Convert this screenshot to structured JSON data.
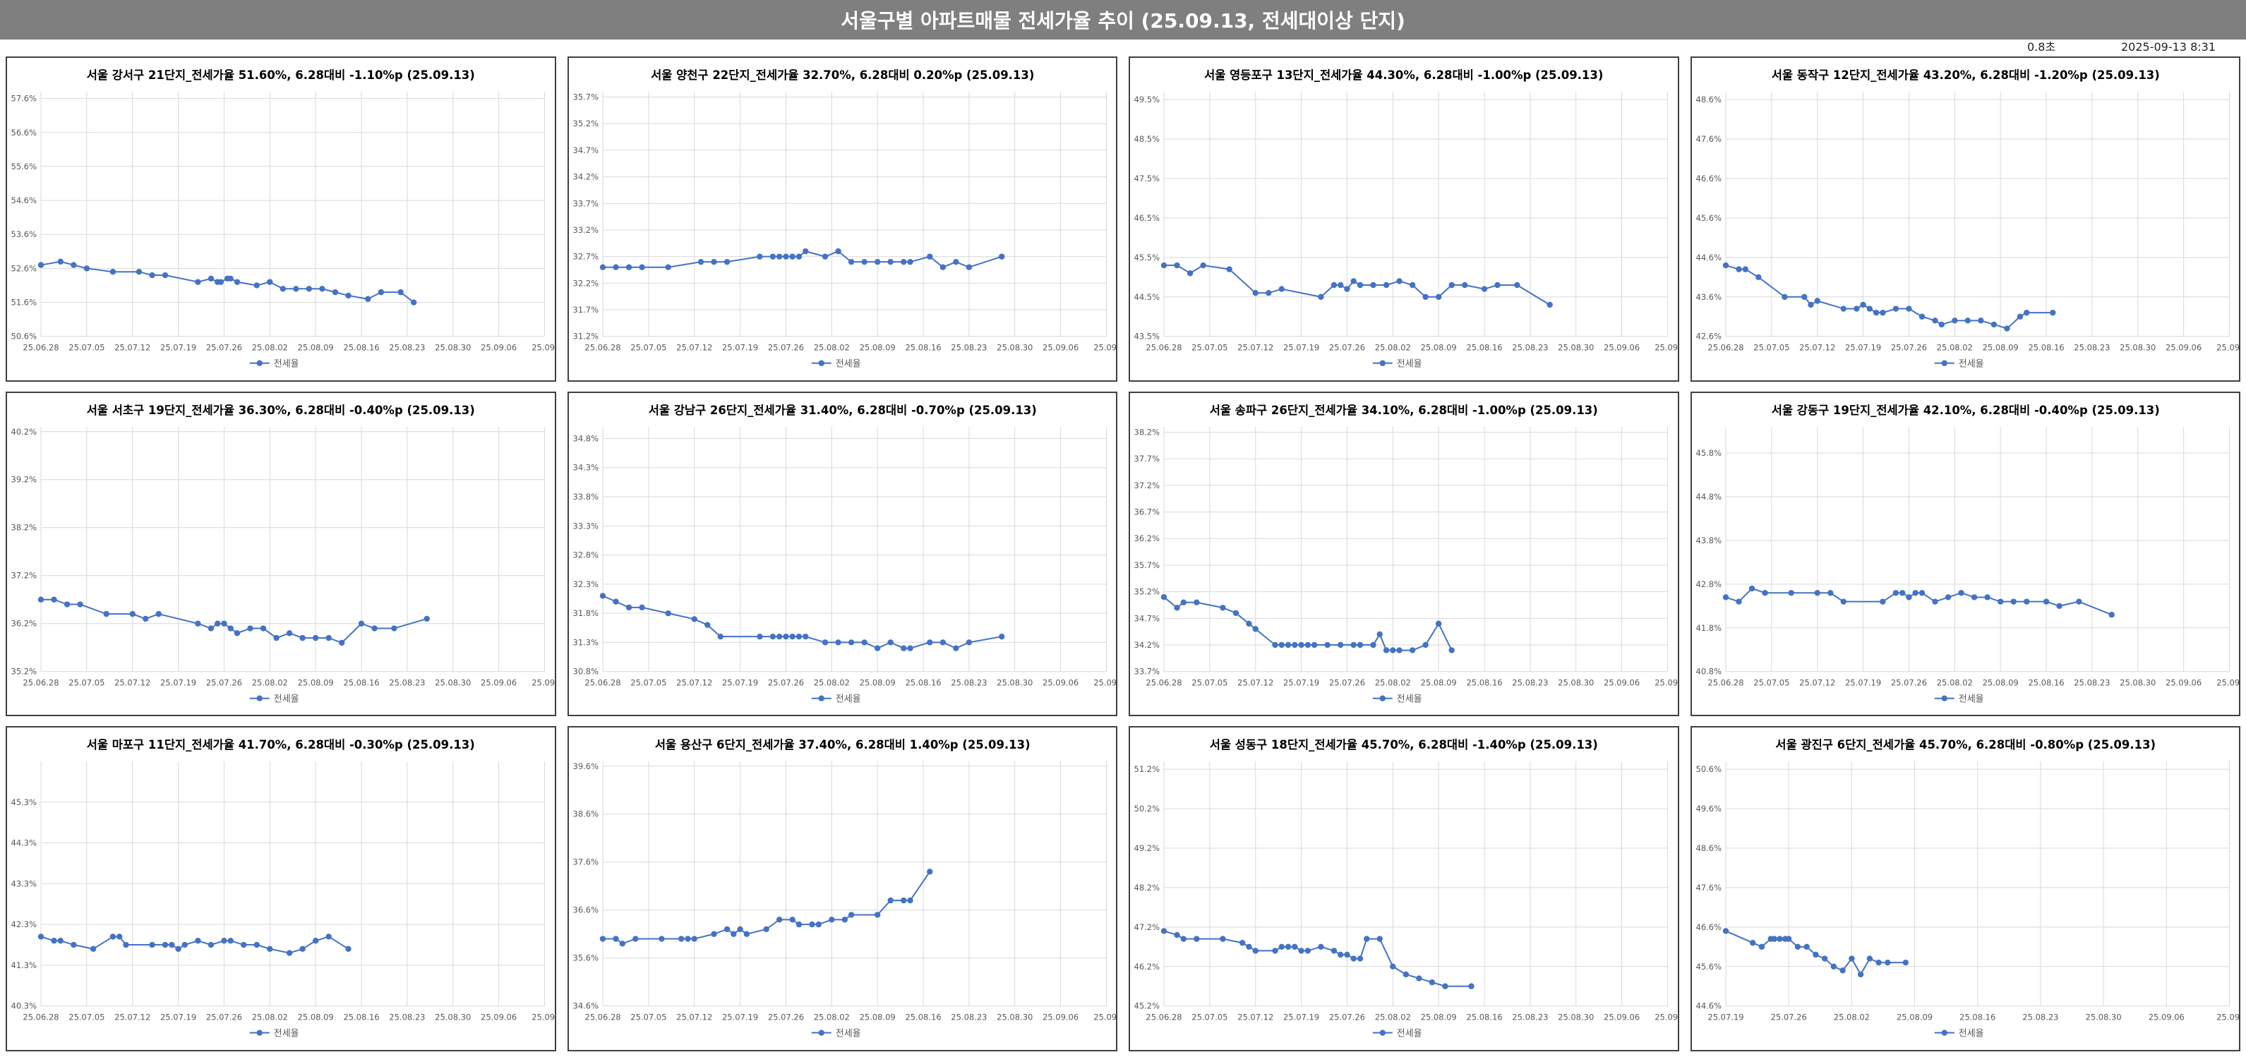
{
  "header": {
    "title": "서울구별 아파트매물 전세가율 추이 (25.09.13, 전세대이상 단지)",
    "elapsed": "0.8초",
    "timestamp": "2025-09-13 8:31"
  },
  "colors": {
    "series": "#4472c4",
    "grid": "#d9d9d9",
    "banner": "#7f7f7f"
  },
  "chart_data": [
    {
      "type": "line",
      "title": "서울 강서구 21단지_전세가율 51.60%, 6.28대비 -1.10%p (25.09.13)",
      "xlabels": [
        "25.06.28",
        "25.07.05",
        "25.07.12",
        "25.07.19",
        "25.07.26",
        "25.08.02",
        "25.08.09",
        "25.08.16",
        "25.08.23",
        "25.08.30",
        "25.09.06",
        "25.09."
      ],
      "yticks": [
        "50.6%",
        "51.6%",
        "52.6%",
        "53.6%",
        "54.6%",
        "55.6%",
        "56.6%",
        "57.6%"
      ],
      "ylim": [
        50.6,
        57.8
      ],
      "x": [
        0,
        3,
        5,
        7,
        11,
        15,
        17,
        19,
        24,
        26,
        27,
        27.5,
        28.5,
        29,
        30,
        33,
        35,
        37,
        39,
        41,
        43,
        45,
        47,
        50,
        52,
        55,
        57
      ],
      "series": [
        {
          "name": "전세율",
          "values": [
            52.7,
            52.8,
            52.7,
            52.6,
            52.5,
            52.5,
            52.4,
            52.4,
            52.2,
            52.3,
            52.2,
            52.2,
            52.3,
            52.3,
            52.2,
            52.1,
            52.2,
            52.0,
            52.0,
            52.0,
            52.0,
            51.9,
            51.8,
            51.7,
            51.9,
            51.9,
            51.6
          ]
        }
      ]
    },
    {
      "type": "line",
      "title": "서울 양천구 22단지_전세가율 32.70%, 6.28대비 0.20%p (25.09.13)",
      "xlabels": [
        "25.06.28",
        "25.07.05",
        "25.07.12",
        "25.07.19",
        "25.07.26",
        "25.08.02",
        "25.08.09",
        "25.08.16",
        "25.08.23",
        "25.08.30",
        "25.09.06",
        "25.09."
      ],
      "yticks": [
        "31.2%",
        "31.7%",
        "32.2%",
        "32.7%",
        "33.2%",
        "33.7%",
        "34.2%",
        "34.7%",
        "35.2%",
        "35.7%"
      ],
      "ylim": [
        31.2,
        35.8
      ],
      "x": [
        0,
        2,
        4,
        6,
        10,
        15,
        17,
        19,
        24,
        26,
        27,
        28,
        29,
        30,
        31,
        34,
        36,
        38,
        40,
        42,
        44,
        46,
        47,
        50,
        52,
        54,
        56,
        61
      ],
      "series": [
        {
          "name": "전세율",
          "values": [
            32.5,
            32.5,
            32.5,
            32.5,
            32.5,
            32.6,
            32.6,
            32.6,
            32.7,
            32.7,
            32.7,
            32.7,
            32.7,
            32.7,
            32.8,
            32.7,
            32.8,
            32.6,
            32.6,
            32.6,
            32.6,
            32.6,
            32.6,
            32.7,
            32.5,
            32.6,
            32.5,
            32.7
          ]
        }
      ]
    },
    {
      "type": "line",
      "title": "서울 영등포구 13단지_전세가율 44.30%, 6.28대비 -1.00%p (25.09.13)",
      "xlabels": [
        "25.06.28",
        "25.07.05",
        "25.07.12",
        "25.07.19",
        "25.07.26",
        "25.08.02",
        "25.08.09",
        "25.08.16",
        "25.08.23",
        "25.08.30",
        "25.09.06",
        "25.09."
      ],
      "yticks": [
        "43.5%",
        "44.5%",
        "45.5%",
        "46.5%",
        "47.5%",
        "48.5%",
        "49.5%"
      ],
      "ylim": [
        43.5,
        49.7
      ],
      "x": [
        0,
        2,
        4,
        6,
        10,
        14,
        16,
        18,
        24,
        26,
        27,
        28,
        29,
        30,
        32,
        34,
        36,
        38,
        40,
        42,
        44,
        46,
        49,
        51,
        54,
        59
      ],
      "series": [
        {
          "name": "전세율",
          "values": [
            45.3,
            45.3,
            45.1,
            45.3,
            45.2,
            44.6,
            44.6,
            44.7,
            44.5,
            44.8,
            44.8,
            44.7,
            44.9,
            44.8,
            44.8,
            44.8,
            44.9,
            44.8,
            44.5,
            44.5,
            44.8,
            44.8,
            44.7,
            44.8,
            44.8,
            44.3
          ]
        }
      ]
    },
    {
      "type": "line",
      "title": "서울 동작구 12단지_전세가율 43.20%, 6.28대비 -1.20%p (25.09.13)",
      "xlabels": [
        "25.06.28",
        "25.07.05",
        "25.07.12",
        "25.07.19",
        "25.07.26",
        "25.08.02",
        "25.08.09",
        "25.08.16",
        "25.08.23",
        "25.08.30",
        "25.09.06",
        "25.09."
      ],
      "yticks": [
        "42.6%",
        "43.6%",
        "44.6%",
        "45.6%",
        "46.6%",
        "47.6%",
        "48.6%"
      ],
      "ylim": [
        42.6,
        48.8
      ],
      "x": [
        0,
        2,
        3,
        5,
        9,
        12,
        13,
        14,
        18,
        20,
        21,
        22,
        23,
        24,
        26,
        28,
        30,
        32,
        33,
        35,
        37,
        39,
        41,
        43,
        45,
        46,
        50
      ],
      "series": [
        {
          "name": "전세율",
          "values": [
            44.4,
            44.3,
            44.3,
            44.1,
            43.6,
            43.6,
            43.4,
            43.5,
            43.3,
            43.3,
            43.4,
            43.3,
            43.2,
            43.2,
            43.3,
            43.3,
            43.1,
            43.0,
            42.9,
            43.0,
            43.0,
            43.0,
            42.9,
            42.8,
            43.1,
            43.2,
            43.2
          ]
        }
      ]
    },
    {
      "type": "line",
      "title": "서울 서초구 19단지_전세가율 36.30%, 6.28대비 -0.40%p (25.09.13)",
      "xlabels": [
        "25.06.28",
        "25.07.05",
        "25.07.12",
        "25.07.19",
        "25.07.26",
        "25.08.02",
        "25.08.09",
        "25.08.16",
        "25.08.23",
        "25.08.30",
        "25.09.06",
        "25.09."
      ],
      "yticks": [
        "35.2%",
        "36.2%",
        "37.2%",
        "38.2%",
        "39.2%",
        "40.2%"
      ],
      "ylim": [
        35.2,
        40.3
      ],
      "x": [
        0,
        2,
        4,
        6,
        10,
        14,
        16,
        18,
        24,
        26,
        27,
        28,
        29,
        30,
        32,
        34,
        36,
        38,
        40,
        42,
        44,
        46,
        49,
        51,
        54,
        59
      ],
      "series": [
        {
          "name": "전세율",
          "values": [
            36.7,
            36.7,
            36.6,
            36.6,
            36.4,
            36.4,
            36.3,
            36.4,
            36.2,
            36.1,
            36.2,
            36.2,
            36.1,
            36.0,
            36.1,
            36.1,
            35.9,
            36.0,
            35.9,
            35.9,
            35.9,
            35.8,
            36.2,
            36.1,
            36.1,
            36.3
          ]
        }
      ]
    },
    {
      "type": "line",
      "title": "서울 강남구 26단지_전세가율 31.40%, 6.28대비 -0.70%p (25.09.13)",
      "xlabels": [
        "25.06.28",
        "25.07.05",
        "25.07.12",
        "25.07.19",
        "25.07.26",
        "25.08.02",
        "25.08.09",
        "25.08.16",
        "25.08.23",
        "25.08.30",
        "25.09.06",
        "25.09."
      ],
      "yticks": [
        "30.8%",
        "31.3%",
        "31.8%",
        "32.3%",
        "32.8%",
        "33.3%",
        "33.8%",
        "34.3%",
        "34.8%"
      ],
      "ylim": [
        30.8,
        35.0
      ],
      "x": [
        0,
        2,
        4,
        6,
        10,
        14,
        16,
        18,
        24,
        26,
        27,
        28,
        29,
        30,
        31,
        34,
        36,
        38,
        40,
        42,
        44,
        46,
        47,
        50,
        52,
        54,
        56,
        61
      ],
      "series": [
        {
          "name": "전세율",
          "values": [
            32.1,
            32.0,
            31.9,
            31.9,
            31.8,
            31.7,
            31.6,
            31.4,
            31.4,
            31.4,
            31.4,
            31.4,
            31.4,
            31.4,
            31.4,
            31.3,
            31.3,
            31.3,
            31.3,
            31.2,
            31.3,
            31.2,
            31.2,
            31.3,
            31.3,
            31.2,
            31.3,
            31.4
          ]
        }
      ]
    },
    {
      "type": "line",
      "title": "서울 송파구 26단지_전세가율 34.10%, 6.28대비 -1.00%p (25.09.13)",
      "xlabels": [
        "25.06.28",
        "25.07.05",
        "25.07.12",
        "25.07.19",
        "25.07.26",
        "25.08.02",
        "25.08.09",
        "25.08.16",
        "25.08.23",
        "25.08.30",
        "25.09.06",
        "25.09."
      ],
      "yticks": [
        "33.7%",
        "34.2%",
        "34.7%",
        "35.2%",
        "35.7%",
        "36.2%",
        "36.7%",
        "37.2%",
        "37.7%",
        "38.2%"
      ],
      "ylim": [
        33.7,
        38.3
      ],
      "x": [
        0,
        2,
        3,
        5,
        9,
        11,
        13,
        14,
        17,
        18,
        19,
        20,
        21,
        22,
        23,
        25,
        27,
        29,
        30,
        32,
        33,
        34,
        35,
        36,
        38,
        40,
        42,
        44
      ],
      "series": [
        {
          "name": "전세율",
          "values": [
            35.1,
            34.9,
            35.0,
            35.0,
            34.9,
            34.8,
            34.6,
            34.5,
            34.2,
            34.2,
            34.2,
            34.2,
            34.2,
            34.2,
            34.2,
            34.2,
            34.2,
            34.2,
            34.2,
            34.2,
            34.4,
            34.1,
            34.1,
            34.1,
            34.1,
            34.2,
            34.6,
            34.1
          ]
        }
      ]
    },
    {
      "type": "line",
      "title": "서울 강동구 19단지_전세가율 42.10%, 6.28대비 -0.40%p (25.09.13)",
      "xlabels": [
        "25.06.28",
        "25.07.05",
        "25.07.12",
        "25.07.19",
        "25.07.26",
        "25.08.02",
        "25.08.09",
        "25.08.16",
        "25.08.23",
        "25.08.30",
        "25.09.06",
        "25.09."
      ],
      "yticks": [
        "40.8%",
        "41.8%",
        "42.8%",
        "43.8%",
        "44.8%",
        "45.8%"
      ],
      "ylim": [
        40.8,
        46.4
      ],
      "x": [
        0,
        2,
        4,
        6,
        10,
        14,
        16,
        18,
        24,
        26,
        27,
        28,
        29,
        30,
        32,
        34,
        36,
        38,
        40,
        42,
        44,
        46,
        49,
        51,
        54,
        59
      ],
      "series": [
        {
          "name": "전세율",
          "values": [
            42.5,
            42.4,
            42.7,
            42.6,
            42.6,
            42.6,
            42.6,
            42.4,
            42.4,
            42.6,
            42.6,
            42.5,
            42.6,
            42.6,
            42.4,
            42.5,
            42.6,
            42.5,
            42.5,
            42.4,
            42.4,
            42.4,
            42.4,
            42.3,
            42.4,
            42.1
          ]
        }
      ]
    },
    {
      "type": "line",
      "title": "서울 마포구 11단지_전세가율 41.70%, 6.28대비 -0.30%p (25.09.13)",
      "xlabels": [
        "25.06.28",
        "25.07.05",
        "25.07.12",
        "25.07.19",
        "25.07.26",
        "25.08.02",
        "25.08.09",
        "25.08.16",
        "25.08.23",
        "25.08.30",
        "25.09.06",
        "25.09."
      ],
      "yticks": [
        "40.3%",
        "41.3%",
        "42.3%",
        "43.3%",
        "44.3%",
        "45.3%"
      ],
      "ylim": [
        40.3,
        46.3
      ],
      "x": [
        0,
        2,
        3,
        5,
        8,
        11,
        12,
        13,
        17,
        19,
        20,
        21,
        22,
        24,
        26,
        28,
        29,
        31,
        33,
        35,
        38,
        40,
        42,
        44,
        47
      ],
      "series": [
        {
          "name": "전세율",
          "values": [
            42.0,
            41.9,
            41.9,
            41.8,
            41.7,
            42.0,
            42.0,
            41.8,
            41.8,
            41.8,
            41.8,
            41.7,
            41.8,
            41.9,
            41.8,
            41.9,
            41.9,
            41.8,
            41.8,
            41.7,
            41.6,
            41.7,
            41.9,
            42.0,
            41.7
          ]
        }
      ]
    },
    {
      "type": "line",
      "title": "서울 용산구 6단지_전세가율 37.40%, 6.28대비 1.40%p (25.09.13)",
      "xlabels": [
        "25.06.28",
        "25.07.05",
        "25.07.12",
        "25.07.19",
        "25.07.26",
        "25.08.02",
        "25.08.09",
        "25.08.16",
        "25.08.23",
        "25.08.30",
        "25.09.06",
        "25.09."
      ],
      "yticks": [
        "34.6%",
        "35.6%",
        "36.6%",
        "37.6%",
        "38.6%",
        "39.6%"
      ],
      "ylim": [
        34.6,
        39.7
      ],
      "x": [
        0,
        2,
        3,
        5,
        9,
        12,
        13,
        14,
        17,
        19,
        20,
        21,
        22,
        25,
        27,
        29,
        30,
        32,
        33,
        35,
        37,
        38,
        42,
        44,
        46,
        47,
        50
      ],
      "series": [
        {
          "name": "전세율",
          "values": [
            36.0,
            36.0,
            35.9,
            36.0,
            36.0,
            36.0,
            36.0,
            36.0,
            36.1,
            36.2,
            36.1,
            36.2,
            36.1,
            36.2,
            36.4,
            36.4,
            36.3,
            36.3,
            36.3,
            36.4,
            36.4,
            36.5,
            36.5,
            36.8,
            36.8,
            36.8,
            37.4
          ]
        }
      ]
    },
    {
      "type": "line",
      "title": "서울 성동구 18단지_전세가율 45.70%, 6.28대비 -1.40%p (25.09.13)",
      "xlabels": [
        "25.06.28",
        "25.07.05",
        "25.07.12",
        "25.07.19",
        "25.07.26",
        "25.08.02",
        "25.08.09",
        "25.08.16",
        "25.08.23",
        "25.08.30",
        "25.09.06",
        "25.09."
      ],
      "yticks": [
        "45.2%",
        "46.2%",
        "47.2%",
        "48.2%",
        "49.2%",
        "50.2%",
        "51.2%"
      ],
      "ylim": [
        45.2,
        51.4
      ],
      "x": [
        0,
        2,
        3,
        5,
        9,
        12,
        13,
        14,
        17,
        18,
        19,
        20,
        21,
        22,
        24,
        26,
        27,
        28,
        29,
        30,
        31,
        33,
        35,
        37,
        39,
        41,
        43,
        47
      ],
      "series": [
        {
          "name": "전세율",
          "values": [
            47.1,
            47.0,
            46.9,
            46.9,
            46.9,
            46.8,
            46.7,
            46.6,
            46.6,
            46.7,
            46.7,
            46.7,
            46.6,
            46.6,
            46.7,
            46.6,
            46.5,
            46.5,
            46.4,
            46.4,
            46.9,
            46.9,
            46.2,
            46.0,
            45.9,
            45.8,
            45.7,
            45.7
          ]
        }
      ]
    },
    {
      "type": "line",
      "title": "서울 광진구 6단지_전세가율 45.70%, 6.28대비 -0.80%p (25.09.13)",
      "xlabels": [
        "25.07.19",
        "25.07.26",
        "25.08.02",
        "25.08.09",
        "25.08.16",
        "25.08.23",
        "25.08.30",
        "25.09.06",
        "25.09."
      ],
      "yticks": [
        "44.6%",
        "45.6%",
        "46.6%",
        "47.6%",
        "48.6%",
        "49.6%",
        "50.6%"
      ],
      "ylim": [
        44.6,
        50.8
      ],
      "x": [
        0,
        3,
        4,
        5,
        5.4,
        6,
        6.6,
        7,
        8,
        9,
        10,
        11,
        12,
        13,
        14,
        15,
        16,
        17,
        18,
        20
      ],
      "series": [
        {
          "name": "전세율",
          "values": [
            46.5,
            46.2,
            46.1,
            46.3,
            46.3,
            46.3,
            46.3,
            46.3,
            46.1,
            46.1,
            45.9,
            45.8,
            45.6,
            45.5,
            45.8,
            45.4,
            45.8,
            45.7,
            45.7,
            45.7
          ]
        }
      ]
    }
  ]
}
